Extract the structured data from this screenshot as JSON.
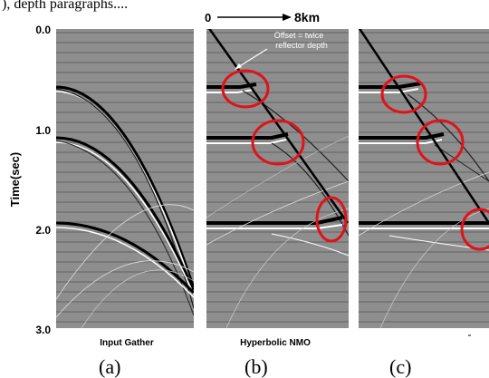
{
  "header_text": "), depth paragraphs....",
  "distance_scale": {
    "start": "0",
    "end": "8km"
  },
  "y_axis": {
    "label": "Time(sec)",
    "ticks": [
      "0.0",
      "1.0",
      "2.0",
      "3.0"
    ],
    "range": [
      0.0,
      3.0
    ],
    "units": "sec"
  },
  "annotation": {
    "line1": "Offset = twice",
    "line2": "reflector depth"
  },
  "panels": [
    {
      "id": "a",
      "label": "Input Gather",
      "caption": "(a)"
    },
    {
      "id": "b",
      "label": "Hyperbolic NMO",
      "caption": "(b)"
    },
    {
      "id": "c",
      "label": "",
      "caption": "(c)"
    }
  ],
  "colors": {
    "background_gray": "#8e8e8e",
    "trace_line": "#555555",
    "highlight_circle": "#e0121a",
    "event_dark": "#000000",
    "event_light": "#ffffff"
  },
  "reflector_times_sec": [
    0.6,
    1.12,
    1.96
  ]
}
